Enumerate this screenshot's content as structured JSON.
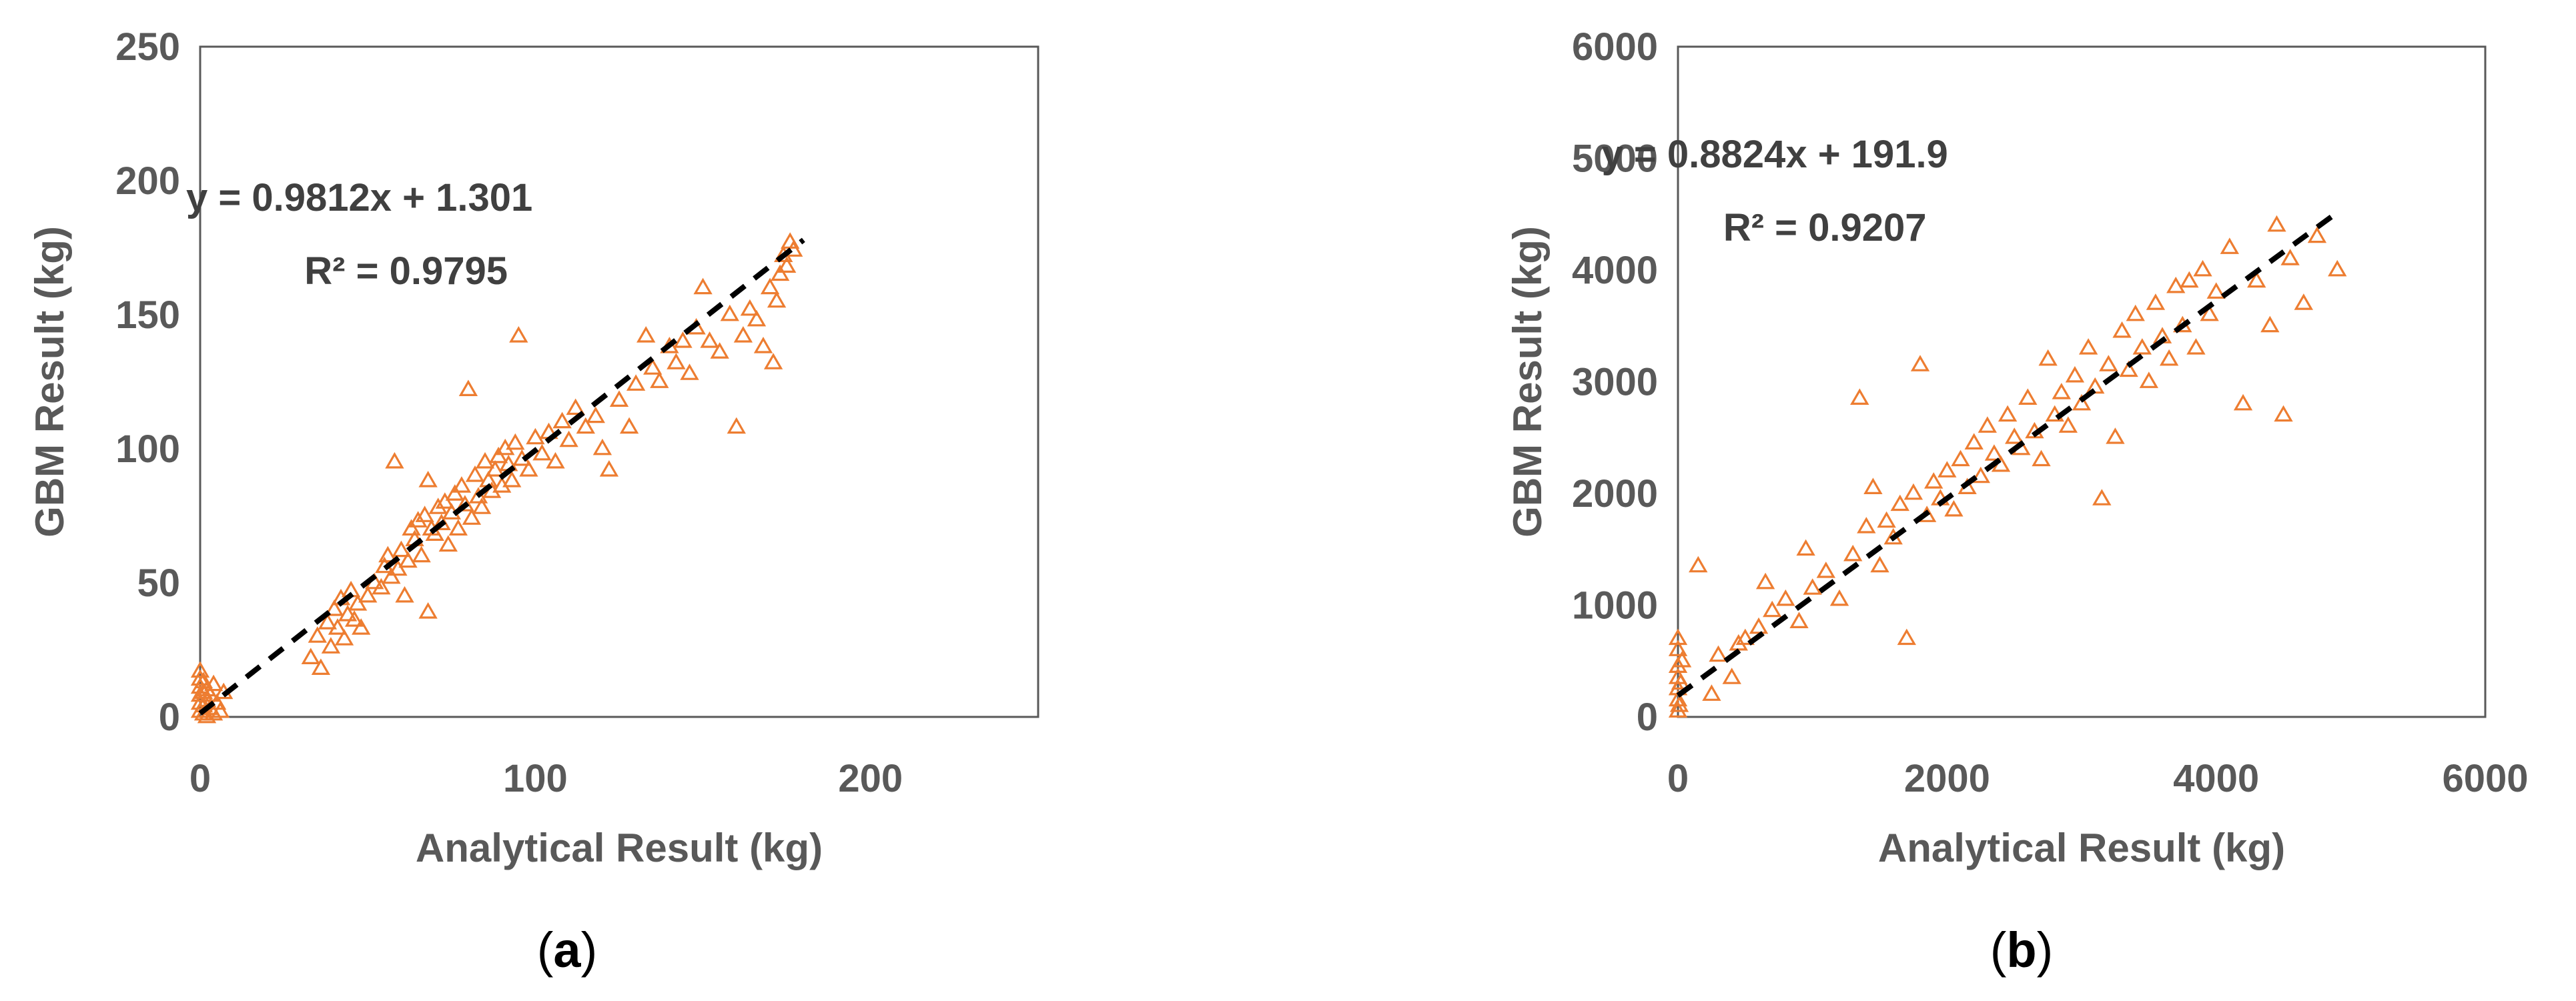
{
  "colors": {
    "marker": "#ED7D31",
    "trendline": "#000000",
    "axis": "#595959",
    "frame": "#595959"
  },
  "chart_data": [
    {
      "type": "scatter",
      "panel_label": "a",
      "caption_open": "(",
      "caption_close": ")",
      "title": "",
      "xlabel": "Analytical Result (kg)",
      "ylabel": "GBM Result (kg)",
      "xlim": [
        0,
        250
      ],
      "ylim": [
        0,
        250
      ],
      "xticks": [
        0,
        100,
        200
      ],
      "yticks": [
        0,
        50,
        100,
        150,
        200,
        250
      ],
      "grid": false,
      "legend": "none",
      "marker": "open-triangle",
      "trendline": {
        "style": "dashed",
        "slope": 0.9812,
        "intercept": 1.301,
        "x_range": [
          0,
          180
        ],
        "equation": "y = 0.9812x + 1.301",
        "r2": "R² = 0.9795"
      },
      "points": [
        [
          0,
          2
        ],
        [
          0,
          5
        ],
        [
          0,
          8
        ],
        [
          0,
          11
        ],
        [
          0,
          14
        ],
        [
          0,
          17
        ],
        [
          1,
          1
        ],
        [
          1,
          4
        ],
        [
          1,
          9
        ],
        [
          1,
          13
        ],
        [
          2,
          0
        ],
        [
          2,
          6
        ],
        [
          2,
          10
        ],
        [
          3,
          3
        ],
        [
          3,
          8
        ],
        [
          4,
          1
        ],
        [
          4,
          12
        ],
        [
          5,
          5
        ],
        [
          6,
          2
        ],
        [
          7,
          9
        ],
        [
          33,
          22
        ],
        [
          35,
          30
        ],
        [
          36,
          18
        ],
        [
          38,
          35
        ],
        [
          39,
          26
        ],
        [
          40,
          40
        ],
        [
          41,
          33
        ],
        [
          42,
          44
        ],
        [
          43,
          29
        ],
        [
          44,
          38
        ],
        [
          45,
          47
        ],
        [
          46,
          36
        ],
        [
          47,
          42
        ],
        [
          48,
          33
        ],
        [
          50,
          45
        ],
        [
          52,
          50
        ],
        [
          54,
          48
        ],
        [
          55,
          56
        ],
        [
          56,
          60
        ],
        [
          57,
          52
        ],
        [
          58,
          95
        ],
        [
          59,
          55
        ],
        [
          60,
          62
        ],
        [
          61,
          45
        ],
        [
          62,
          58
        ],
        [
          63,
          70
        ],
        [
          64,
          66
        ],
        [
          65,
          73
        ],
        [
          66,
          60
        ],
        [
          67,
          75
        ],
        [
          68,
          88
        ],
        [
          68,
          39
        ],
        [
          69,
          70
        ],
        [
          70,
          68
        ],
        [
          71,
          78
        ],
        [
          72,
          72
        ],
        [
          73,
          80
        ],
        [
          74,
          64
        ],
        [
          75,
          76
        ],
        [
          76,
          83
        ],
        [
          77,
          70
        ],
        [
          78,
          86
        ],
        [
          79,
          79
        ],
        [
          80,
          122
        ],
        [
          81,
          74
        ],
        [
          82,
          90
        ],
        [
          83,
          82
        ],
        [
          84,
          78
        ],
        [
          85,
          95
        ],
        [
          86,
          88
        ],
        [
          87,
          84
        ],
        [
          88,
          92
        ],
        [
          89,
          97
        ],
        [
          90,
          86
        ],
        [
          91,
          100
        ],
        [
          92,
          94
        ],
        [
          93,
          88
        ],
        [
          94,
          102
        ],
        [
          95,
          142
        ],
        [
          96,
          96
        ],
        [
          98,
          92
        ],
        [
          100,
          104
        ],
        [
          102,
          98
        ],
        [
          104,
          106
        ],
        [
          106,
          95
        ],
        [
          108,
          110
        ],
        [
          110,
          103
        ],
        [
          112,
          115
        ],
        [
          115,
          108
        ],
        [
          118,
          112
        ],
        [
          120,
          100
        ],
        [
          122,
          92
        ],
        [
          125,
          118
        ],
        [
          128,
          108
        ],
        [
          130,
          124
        ],
        [
          133,
          142
        ],
        [
          135,
          130
        ],
        [
          137,
          125
        ],
        [
          140,
          138
        ],
        [
          142,
          132
        ],
        [
          144,
          140
        ],
        [
          146,
          128
        ],
        [
          148,
          145
        ],
        [
          150,
          160
        ],
        [
          152,
          140
        ],
        [
          155,
          136
        ],
        [
          158,
          150
        ],
        [
          160,
          108
        ],
        [
          162,
          142
        ],
        [
          164,
          152
        ],
        [
          166,
          148
        ],
        [
          168,
          138
        ],
        [
          170,
          160
        ],
        [
          171,
          132
        ],
        [
          172,
          155
        ],
        [
          173,
          165
        ],
        [
          174,
          172
        ],
        [
          175,
          168
        ],
        [
          176,
          177
        ],
        [
          177,
          174
        ]
      ]
    },
    {
      "type": "scatter",
      "panel_label": "b",
      "caption_open": "(",
      "caption_close": ")",
      "title": "",
      "xlabel": "Analytical Result (kg)",
      "ylabel": "GBM Result (kg)",
      "xlim": [
        0,
        6000
      ],
      "ylim": [
        0,
        6000
      ],
      "xticks": [
        0,
        2000,
        4000,
        6000
      ],
      "yticks": [
        0,
        1000,
        2000,
        3000,
        4000,
        5000,
        6000
      ],
      "grid": false,
      "legend": "none",
      "marker": "open-triangle",
      "trendline": {
        "style": "dashed",
        "slope": 0.8824,
        "intercept": 191.9,
        "x_range": [
          0,
          4900
        ],
        "equation": "y = 0.8824x + 191.9",
        "r2": "R² = 0.9207"
      },
      "points": [
        [
          0,
          50
        ],
        [
          0,
          150
        ],
        [
          0,
          250
        ],
        [
          0,
          350
        ],
        [
          0,
          450
        ],
        [
          0,
          600
        ],
        [
          0,
          700
        ],
        [
          10,
          100
        ],
        [
          20,
          300
        ],
        [
          30,
          500
        ],
        [
          150,
          1350
        ],
        [
          250,
          200
        ],
        [
          300,
          550
        ],
        [
          400,
          350
        ],
        [
          450,
          650
        ],
        [
          500,
          700
        ],
        [
          600,
          800
        ],
        [
          650,
          1200
        ],
        [
          700,
          950
        ],
        [
          800,
          1050
        ],
        [
          900,
          850
        ],
        [
          950,
          1500
        ],
        [
          1000,
          1150
        ],
        [
          1100,
          1300
        ],
        [
          1200,
          1050
        ],
        [
          1300,
          1450
        ],
        [
          1350,
          2850
        ],
        [
          1400,
          1700
        ],
        [
          1450,
          2050
        ],
        [
          1500,
          1350
        ],
        [
          1550,
          1750
        ],
        [
          1600,
          1600
        ],
        [
          1650,
          1900
        ],
        [
          1700,
          700
        ],
        [
          1750,
          2000
        ],
        [
          1800,
          3150
        ],
        [
          1850,
          1800
        ],
        [
          1900,
          2100
        ],
        [
          1950,
          1950
        ],
        [
          2000,
          2200
        ],
        [
          2050,
          1850
        ],
        [
          2100,
          2300
        ],
        [
          2150,
          2050
        ],
        [
          2200,
          2450
        ],
        [
          2250,
          2150
        ],
        [
          2300,
          2600
        ],
        [
          2350,
          2350
        ],
        [
          2400,
          2250
        ],
        [
          2450,
          2700
        ],
        [
          2500,
          2500
        ],
        [
          2550,
          2400
        ],
        [
          2600,
          2850
        ],
        [
          2650,
          2550
        ],
        [
          2700,
          2300
        ],
        [
          2750,
          3200
        ],
        [
          2800,
          2700
        ],
        [
          2850,
          2900
        ],
        [
          2900,
          2600
        ],
        [
          2950,
          3050
        ],
        [
          3000,
          2800
        ],
        [
          3050,
          3300
        ],
        [
          3100,
          2950
        ],
        [
          3150,
          1950
        ],
        [
          3200,
          3150
        ],
        [
          3250,
          2500
        ],
        [
          3300,
          3450
        ],
        [
          3350,
          3100
        ],
        [
          3400,
          3600
        ],
        [
          3450,
          3300
        ],
        [
          3500,
          3000
        ],
        [
          3550,
          3700
        ],
        [
          3600,
          3400
        ],
        [
          3650,
          3200
        ],
        [
          3700,
          3850
        ],
        [
          3750,
          3500
        ],
        [
          3800,
          3900
        ],
        [
          3850,
          3300
        ],
        [
          3900,
          4000
        ],
        [
          3950,
          3600
        ],
        [
          4000,
          3800
        ],
        [
          4100,
          4200
        ],
        [
          4200,
          2800
        ],
        [
          4300,
          3900
        ],
        [
          4400,
          3500
        ],
        [
          4450,
          4400
        ],
        [
          4500,
          2700
        ],
        [
          4550,
          4100
        ],
        [
          4650,
          3700
        ],
        [
          4750,
          4300
        ],
        [
          4900,
          4000
        ]
      ]
    }
  ]
}
